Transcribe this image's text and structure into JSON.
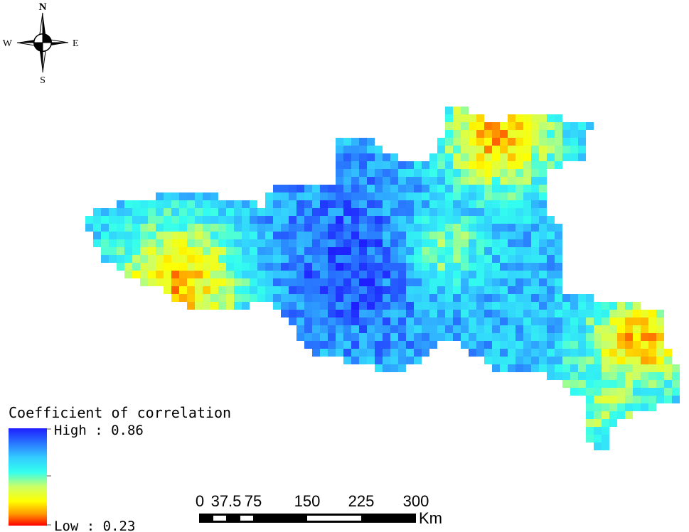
{
  "compass": {
    "north": "N",
    "south": "S",
    "east": "E",
    "west": "W"
  },
  "legend": {
    "title": "Coefficient of correlation",
    "high": "High : 0.86",
    "low": "Low : 0.23"
  },
  "scale_bar": {
    "labels": [
      "0",
      "37.5",
      "75",
      "150",
      "225",
      "300"
    ],
    "unit": "Km"
  }
}
